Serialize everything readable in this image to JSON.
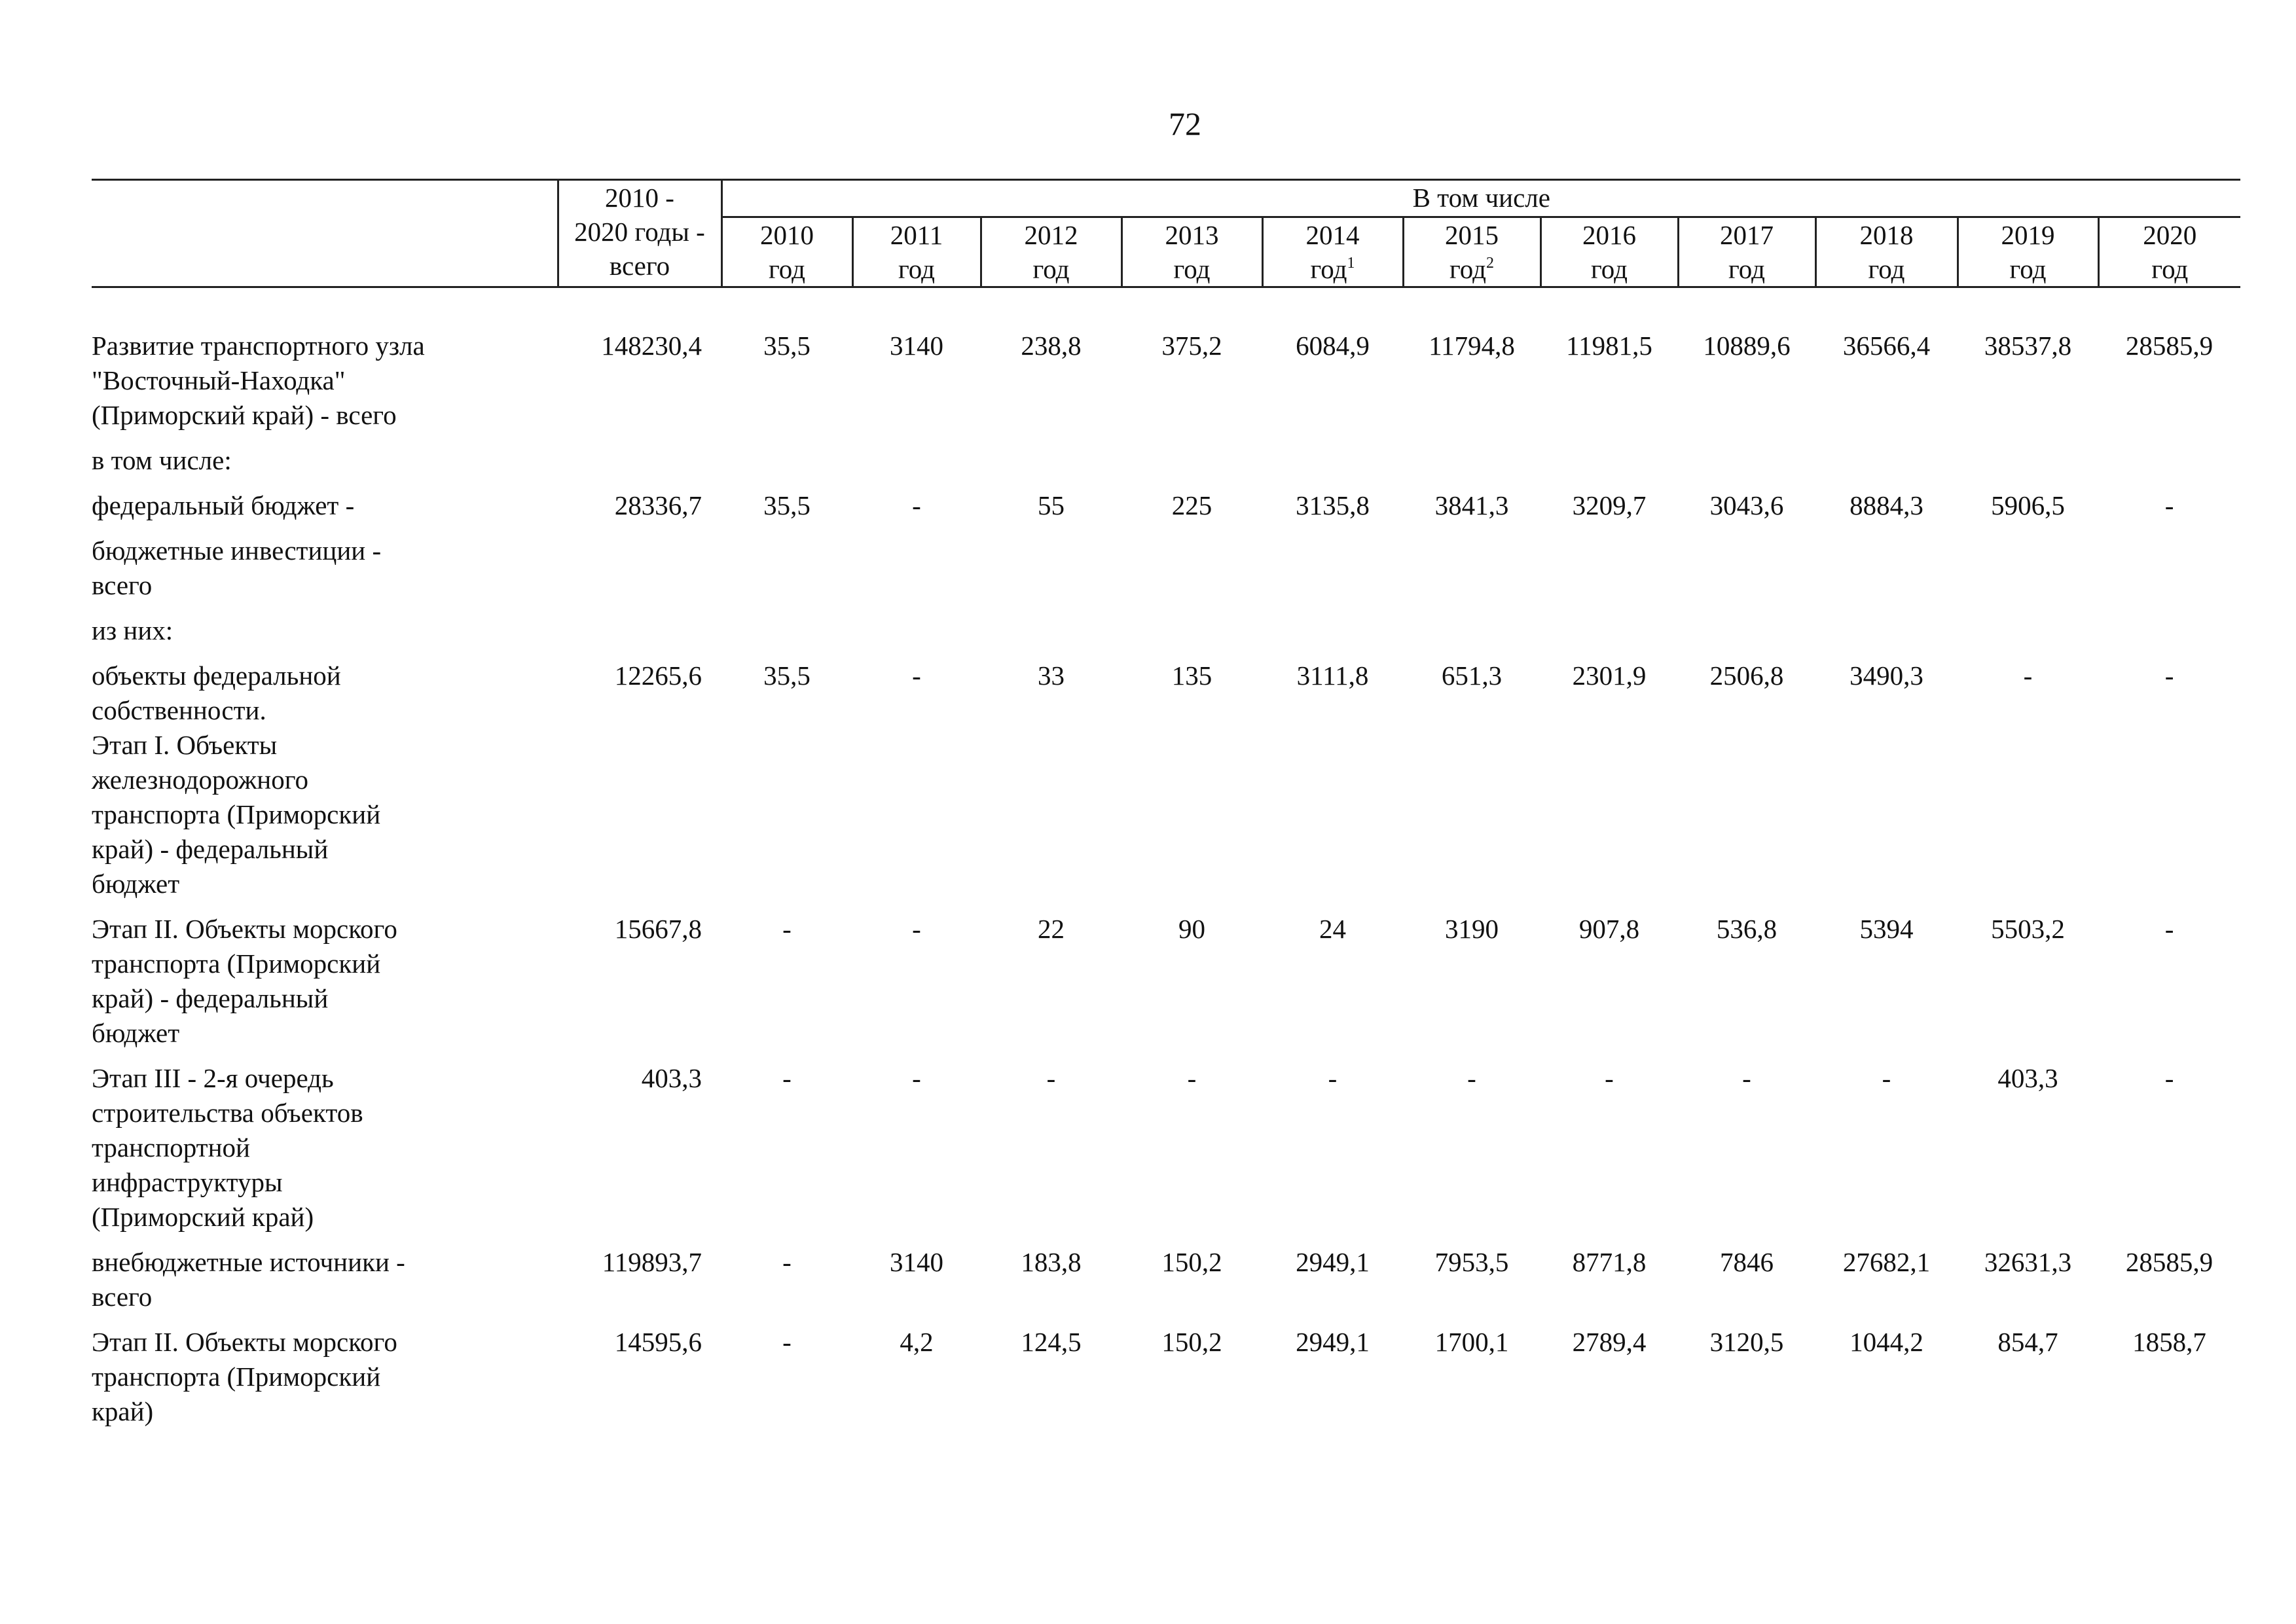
{
  "page_number": "72",
  "header": {
    "total_col": [
      "2010 -",
      "2020 годы -",
      "всего"
    ],
    "including": "В том числе",
    "years": [
      {
        "year": "2010",
        "unit": "год",
        "note": ""
      },
      {
        "year": "2011",
        "unit": "год",
        "note": ""
      },
      {
        "year": "2012",
        "unit": "год",
        "note": ""
      },
      {
        "year": "2013",
        "unit": "год",
        "note": ""
      },
      {
        "year": "2014",
        "unit": "год",
        "note": "1"
      },
      {
        "year": "2015",
        "unit": "год",
        "note": "2"
      },
      {
        "year": "2016",
        "unit": "год",
        "note": ""
      },
      {
        "year": "2017",
        "unit": "год",
        "note": ""
      },
      {
        "year": "2018",
        "unit": "год",
        "note": ""
      },
      {
        "year": "2019",
        "unit": "год",
        "note": ""
      },
      {
        "year": "2020",
        "unit": "год",
        "note": ""
      }
    ]
  },
  "rows": [
    {
      "indent": 0,
      "label": [
        "Развитие транспортного узла",
        "\"Восточный-Находка\"",
        "(Приморский край) - всего"
      ],
      "total": "148230,4",
      "values": [
        "35,5",
        "3140",
        "238,8",
        "375,2",
        "6084,9",
        "11794,8",
        "11981,5",
        "10889,6",
        "36566,4",
        "38537,8",
        "28585,9"
      ]
    },
    {
      "indent": 1,
      "label": [
        "в том числе:"
      ],
      "total": "",
      "values": [
        "",
        "",
        "",
        "",
        "",
        "",
        "",
        "",
        "",
        "",
        ""
      ]
    },
    {
      "indent": 1,
      "label": [
        "федеральный бюджет -"
      ],
      "total": "28336,7",
      "values": [
        "35,5",
        "-",
        "55",
        "225",
        "3135,8",
        "3841,3",
        "3209,7",
        "3043,6",
        "8884,3",
        "5906,5",
        "-"
      ]
    },
    {
      "indent": 1,
      "label": [
        "бюджетные инвестиции -",
        "всего"
      ],
      "total": "",
      "values": [
        "",
        "",
        "",
        "",
        "",
        "",
        "",
        "",
        "",
        "",
        ""
      ]
    },
    {
      "indent": 2,
      "label": [
        "из них:"
      ],
      "total": "",
      "values": [
        "",
        "",
        "",
        "",
        "",
        "",
        "",
        "",
        "",
        "",
        ""
      ]
    },
    {
      "indent": 2,
      "label": [
        "объекты федеральной",
        "собственности.",
        "Этап I. Объекты",
        "железнодорожного",
        "транспорта (Приморский",
        "край) - федеральный",
        "бюджет"
      ],
      "total": "12265,6",
      "values": [
        "35,5",
        "-",
        "33",
        "135",
        "3111,8",
        "651,3",
        "2301,9",
        "2506,8",
        "3490,3",
        "-",
        "-"
      ]
    },
    {
      "indent": 2,
      "label": [
        "Этап II. Объекты морского",
        "транспорта (Приморский",
        "край) - федеральный",
        "бюджет"
      ],
      "total": "15667,8",
      "values": [
        "-",
        "-",
        "22",
        "90",
        "24",
        "3190",
        "907,8",
        "536,8",
        "5394",
        "5503,2",
        "-"
      ]
    },
    {
      "indent": 2,
      "label": [
        "Этап III - 2-я очередь",
        "строительства объектов",
        "транспортной",
        "инфраструктуры",
        "(Приморский край)"
      ],
      "total": "403,3",
      "values": [
        "-",
        "-",
        "-",
        "-",
        "-",
        "-",
        "-",
        "-",
        "-",
        "403,3",
        "-"
      ]
    },
    {
      "indent": 1,
      "label": [
        "внебюджетные источники -",
        "всего"
      ],
      "total": "119893,7",
      "values": [
        "-",
        "3140",
        "183,8",
        "150,2",
        "2949,1",
        "7953,5",
        "8771,8",
        "7846",
        "27682,1",
        "32631,3",
        "28585,9"
      ]
    },
    {
      "indent": 2,
      "label": [
        "Этап II. Объекты морского",
        "транспорта (Приморский",
        "край)"
      ],
      "total": "14595,6",
      "values": [
        "-",
        "4,2",
        "124,5",
        "150,2",
        "2949,1",
        "1700,1",
        "2789,4",
        "3120,5",
        "1044,2",
        "854,7",
        "1858,7"
      ]
    }
  ]
}
